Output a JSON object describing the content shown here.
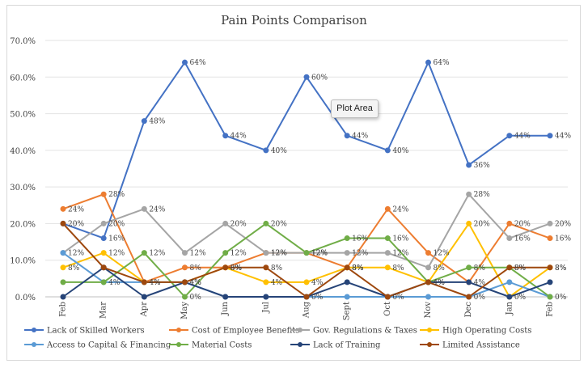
{
  "chart_data": {
    "type": "line",
    "title": "Pain Points Comparison",
    "xlabel": "",
    "ylabel": "",
    "ylim": [
      0,
      70
    ],
    "y_ticks": [
      "0.0%",
      "10.0%",
      "20.0%",
      "30.0%",
      "40.0%",
      "50.0%",
      "60.0%",
      "70.0%"
    ],
    "categories": [
      "Feb",
      "Mar",
      "Apr",
      "May",
      "Jun",
      "Jul",
      "Aug",
      "Sept",
      "Oct",
      "Nov",
      "Dec",
      "Jan",
      "Feb"
    ],
    "grid": true,
    "legend_position": "bottom",
    "series": [
      {
        "name": "Lack of Skilled Workers",
        "color": "#4472C4",
        "values": [
          20,
          16,
          48,
          64,
          44,
          40,
          60,
          44,
          40,
          64,
          36,
          44,
          44
        ],
        "labels": [
          "",
          "16%",
          "48%",
          "64%",
          "44%",
          "40%",
          "60%",
          "44%",
          "40%",
          "64%",
          "36%",
          "44%",
          "44%"
        ]
      },
      {
        "name": "Cost of Employee Benefits",
        "color": "#ED7D31",
        "values": [
          24,
          28,
          4,
          8,
          8,
          12,
          12,
          8,
          24,
          12,
          4,
          20,
          16
        ],
        "labels": [
          "24%",
          "28%",
          "4%",
          "8%",
          "8%",
          "12%",
          "12%",
          "8%",
          "24%",
          "12%",
          "4%",
          "20%",
          "16%"
        ]
      },
      {
        "name": "Gov. Regulations & Taxes",
        "color": "#A5A5A5",
        "values": [
          12,
          20,
          24,
          12,
          20,
          12,
          12,
          12,
          12,
          8,
          28,
          16,
          20
        ],
        "labels": [
          "12%",
          "20%",
          "24%",
          "12%",
          "20%",
          "12%",
          "12%",
          "12%",
          "12%",
          "8%",
          "28%",
          "16%",
          "20%"
        ]
      },
      {
        "name": "High Operating Costs",
        "color": "#FFC000",
        "values": [
          8,
          12,
          4,
          4,
          8,
          4,
          4,
          8,
          8,
          4,
          20,
          0,
          8
        ],
        "labels": [
          "8%",
          "12%",
          "4%",
          "4%",
          "8%",
          "4%",
          "4%",
          "8%",
          "8%",
          "4%",
          "20%",
          "0%",
          "8%"
        ]
      },
      {
        "name": "Access to Capital & Financing",
        "color": "#5B9BD5",
        "values": [
          12,
          4,
          4,
          4,
          0,
          0,
          0,
          0,
          0,
          0,
          0,
          4,
          0
        ],
        "labels": [
          "",
          "4%",
          "",
          "",
          "",
          "",
          "",
          "",
          "",
          "",
          "",
          "",
          ""
        ]
      },
      {
        "name": "Material Costs",
        "color": "#70AD47",
        "values": [
          4,
          4,
          12,
          0,
          12,
          20,
          12,
          16,
          16,
          4,
          8,
          8,
          0
        ],
        "labels": [
          "",
          "",
          "12%",
          "0%",
          "12%",
          "20%",
          "12%",
          "16%",
          "16%",
          "",
          "8%",
          "8%",
          "0%"
        ]
      },
      {
        "name": "Lack of Training",
        "color": "#264478",
        "values": [
          0,
          8,
          0,
          4,
          0,
          0,
          0,
          4,
          0,
          4,
          4,
          0,
          4
        ],
        "labels": [
          "",
          "",
          "",
          "",
          "",
          "",
          "0%",
          "",
          "",
          "4%",
          "",
          "",
          ""
        ]
      },
      {
        "name": "Limited Assistance",
        "color": "#9E480E",
        "values": [
          20,
          8,
          4,
          4,
          8,
          8,
          0,
          8,
          0,
          4,
          0,
          8,
          8
        ],
        "labels": [
          "20%",
          "",
          "",
          "4%",
          "8%",
          "8%",
          "",
          "8%",
          "0%",
          "",
          "0%",
          "8%",
          "8%"
        ]
      }
    ]
  },
  "tooltip": "Plot Area"
}
